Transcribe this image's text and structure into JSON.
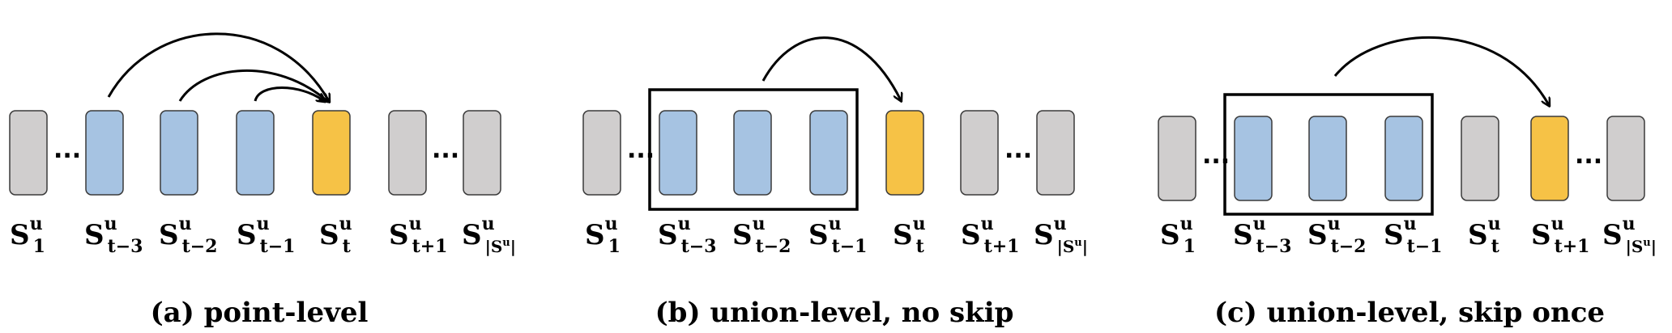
{
  "colors": {
    "gray": "#d0cece",
    "blue": "#a6c3e2",
    "yellow": "#f6c246",
    "stroke": "#3a3a3a"
  },
  "dots": "...",
  "panels": [
    {
      "caption": "(a) point-level",
      "blocks": [
        {
          "color": "gray",
          "label": {
            "base": "S",
            "sup": "u",
            "sub": "1"
          }
        },
        {
          "color": "blue",
          "label": {
            "base": "S",
            "sup": "u",
            "sub": "t−3"
          }
        },
        {
          "color": "blue",
          "label": {
            "base": "S",
            "sup": "u",
            "sub": "t−2"
          }
        },
        {
          "color": "blue",
          "label": {
            "base": "S",
            "sup": "u",
            "sub": "t−1"
          }
        },
        {
          "color": "yellow",
          "label": {
            "base": "S",
            "sup": "u",
            "sub": "t"
          }
        },
        {
          "color": "gray",
          "label": {
            "base": "S",
            "sup": "u",
            "sub": "t+1"
          }
        },
        {
          "color": "gray",
          "label": {
            "base": "S",
            "sup": "u",
            "sub": "|S",
            "subsup": "u",
            "subend": "|"
          }
        }
      ]
    },
    {
      "caption": "(b) union-level, no skip",
      "blocks": [
        {
          "color": "gray",
          "label": {
            "base": "S",
            "sup": "u",
            "sub": "1"
          }
        },
        {
          "color": "blue",
          "label": {
            "base": "S",
            "sup": "u",
            "sub": "t−3"
          }
        },
        {
          "color": "blue",
          "label": {
            "base": "S",
            "sup": "u",
            "sub": "t−2"
          }
        },
        {
          "color": "blue",
          "label": {
            "base": "S",
            "sup": "u",
            "sub": "t−1"
          }
        },
        {
          "color": "yellow",
          "label": {
            "base": "S",
            "sup": "u",
            "sub": "t"
          }
        },
        {
          "color": "gray",
          "label": {
            "base": "S",
            "sup": "u",
            "sub": "t+1"
          }
        },
        {
          "color": "gray",
          "label": {
            "base": "S",
            "sup": "u",
            "sub": "|S",
            "subsup": "u",
            "subend": "|"
          }
        }
      ]
    },
    {
      "caption": "(c) union-level, skip once",
      "blocks": [
        {
          "color": "gray",
          "label": {
            "base": "S",
            "sup": "u",
            "sub": "1"
          }
        },
        {
          "color": "blue",
          "label": {
            "base": "S",
            "sup": "u",
            "sub": "t−3"
          }
        },
        {
          "color": "blue",
          "label": {
            "base": "S",
            "sup": "u",
            "sub": "t−2"
          }
        },
        {
          "color": "blue",
          "label": {
            "base": "S",
            "sup": "u",
            "sub": "t−1"
          }
        },
        {
          "color": "gray",
          "label": {
            "base": "S",
            "sup": "u",
            "sub": "t"
          }
        },
        {
          "color": "yellow",
          "label": {
            "base": "S",
            "sup": "u",
            "sub": "t+1"
          }
        },
        {
          "color": "gray",
          "label": {
            "base": "S",
            "sup": "u",
            "sub": "|S",
            "subsup": "u",
            "subend": "|"
          }
        }
      ]
    }
  ]
}
